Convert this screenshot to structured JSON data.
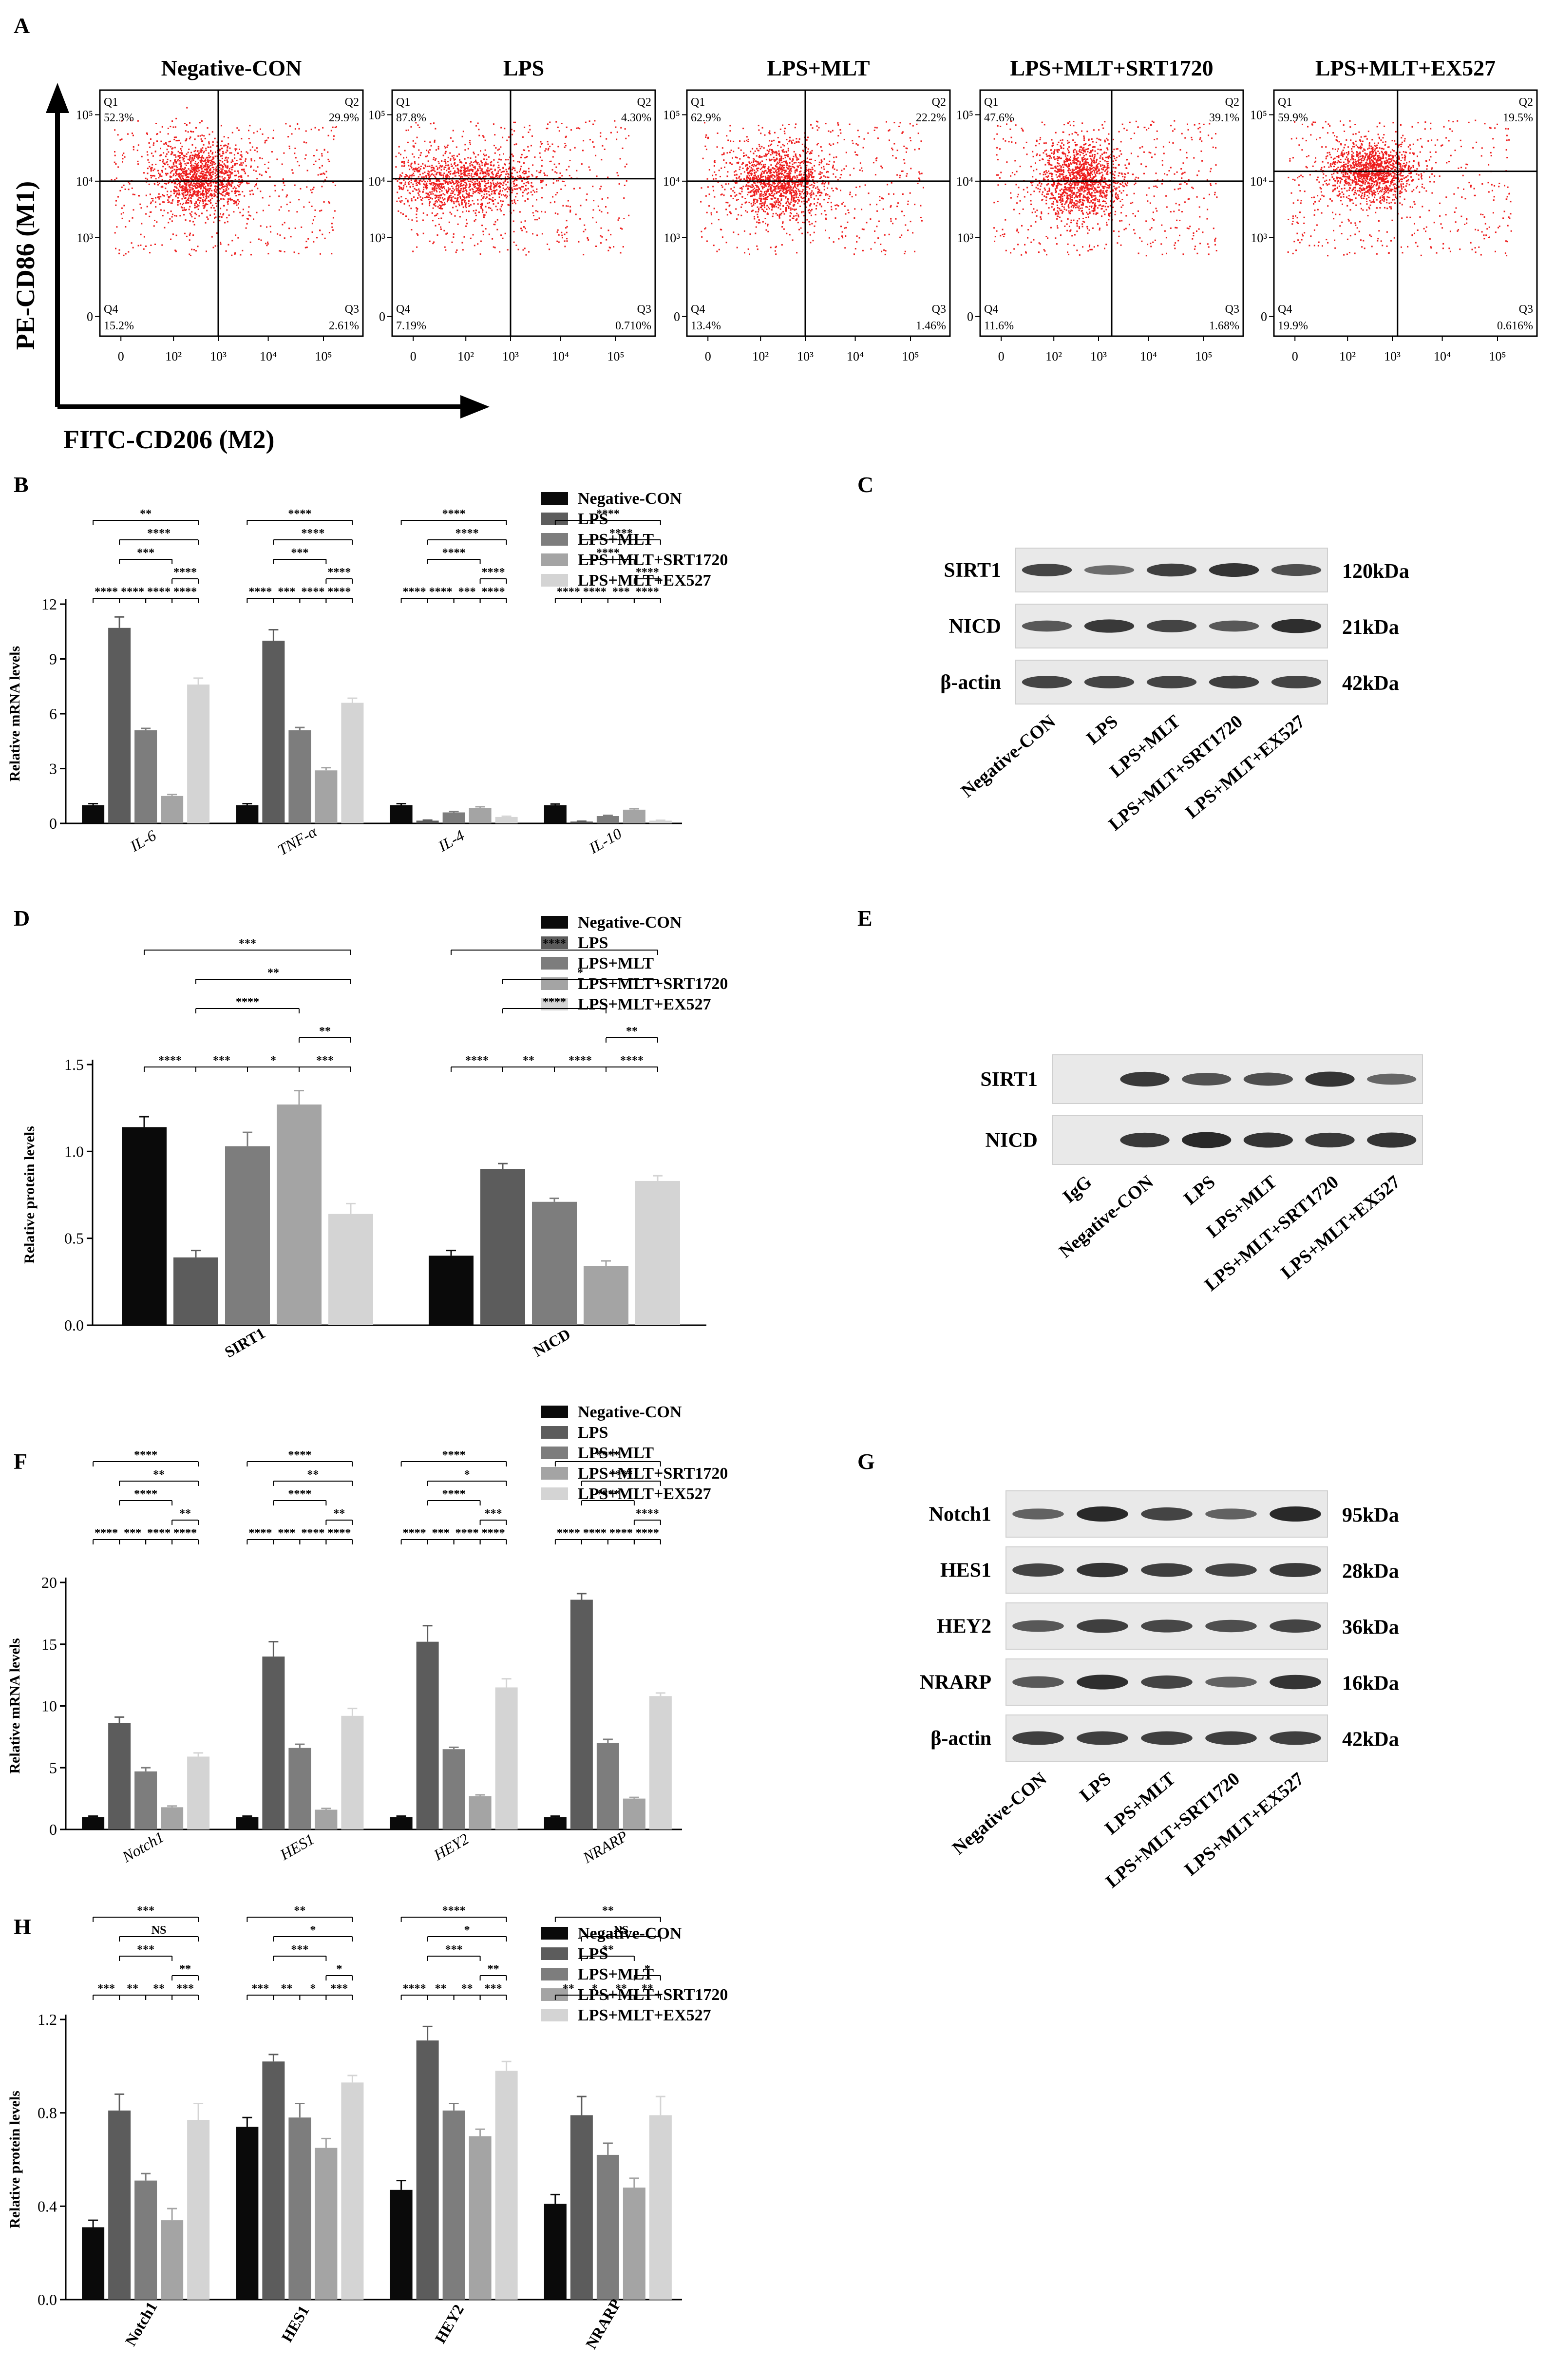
{
  "panel_labels": [
    "A",
    "B",
    "C",
    "D",
    "E",
    "F",
    "G",
    "H"
  ],
  "groups": [
    "Negative-CON",
    "LPS",
    "LPS+MLT",
    "LPS+MLT+SRT1720",
    "LPS+MLT+EX527"
  ],
  "group_colors": [
    "#0a0a0a",
    "#5c5c5c",
    "#7d7d7d",
    "#a4a4a4",
    "#d4d4d4"
  ],
  "flow": {
    "y_axis_label": "PE-CD86 (M1)",
    "x_axis_label": "FITC-CD206 (M2)",
    "x_ticks": [
      "0",
      "10²",
      "10³",
      "10⁴",
      "10⁵"
    ],
    "y_ticks": [
      "10⁵",
      "10⁴",
      "10³",
      "0"
    ],
    "plots": [
      {
        "title": "Negative-CON",
        "q1": "52.3%",
        "q2": "29.9%",
        "q3": "2.61%",
        "q4": "15.2%"
      },
      {
        "title": "LPS",
        "q1": "87.8%",
        "q2": "4.30%",
        "q3": "0.710%",
        "q4": "7.19%"
      },
      {
        "title": "LPS+MLT",
        "q1": "62.9%",
        "q2": "22.2%",
        "q3": "1.46%",
        "q4": "13.4%"
      },
      {
        "title": "LPS+MLT+SRT1720",
        "q1": "47.6%",
        "q2": "39.1%",
        "q3": "1.68%",
        "q4": "11.6%"
      },
      {
        "title": "LPS+MLT+EX527",
        "q1": "59.9%",
        "q2": "19.5%",
        "q3": "0.616%",
        "q4": "19.9%"
      }
    ]
  },
  "blots": {
    "C": {
      "rows": [
        {
          "name": "SIRT1",
          "kda": "120kDa"
        },
        {
          "name": "NICD",
          "kda": "21kDa"
        },
        {
          "name": "β-actin",
          "kda": "42kDa"
        }
      ],
      "lanes": [
        "Negative-CON",
        "LPS",
        "LPS+MLT",
        "LPS+MLT+SRT1720",
        "LPS+MLT+EX527"
      ]
    },
    "E": {
      "rows": [
        {
          "name": "SIRT1"
        },
        {
          "name": "NICD"
        }
      ],
      "lanes": [
        "IgG",
        "Negative-CON",
        "LPS",
        "LPS+MLT",
        "LPS+MLT+SRT1720",
        "LPS+MLT+EX527"
      ]
    },
    "G": {
      "rows": [
        {
          "name": "Notch1",
          "kda": "95kDa"
        },
        {
          "name": "HES1",
          "kda": "28kDa"
        },
        {
          "name": "HEY2",
          "kda": "36kDa"
        },
        {
          "name": "NRARP",
          "kda": "16kDa"
        },
        {
          "name": "β-actin",
          "kda": "42kDa"
        }
      ],
      "lanes": [
        "Negative-CON",
        "LPS",
        "LPS+MLT",
        "LPS+MLT+SRT1720",
        "LPS+MLT+EX527"
      ]
    }
  },
  "chart_data": [
    {
      "panel": "B",
      "type": "bar",
      "ylabel": "Relative mRNA levels",
      "italic_categories": true,
      "categories": [
        "IL-6",
        "TNF-α",
        "IL-4",
        "IL-10"
      ],
      "yticks": [
        "0",
        "3",
        "6",
        "9",
        "12"
      ],
      "ylim": [
        0,
        12
      ],
      "series": [
        {
          "name": "Negative-CON",
          "values": [
            1.0,
            1.0,
            1.0,
            1.0
          ],
          "errors": [
            0.08,
            0.08,
            0.08,
            0.06
          ]
        },
        {
          "name": "LPS",
          "values": [
            10.7,
            10.0,
            0.15,
            0.1
          ],
          "errors": [
            0.6,
            0.6,
            0.03,
            0.02
          ]
        },
        {
          "name": "LPS+MLT",
          "values": [
            5.1,
            5.1,
            0.6,
            0.4
          ],
          "errors": [
            0.1,
            0.15,
            0.05,
            0.04
          ]
        },
        {
          "name": "LPS+MLT+SRT1720",
          "values": [
            1.5,
            2.9,
            0.85,
            0.75
          ],
          "errors": [
            0.08,
            0.15,
            0.06,
            0.05
          ]
        },
        {
          "name": "LPS+MLT+EX527",
          "values": [
            7.6,
            6.6,
            0.35,
            0.15
          ],
          "errors": [
            0.35,
            0.25,
            0.04,
            0.02
          ]
        }
      ],
      "adjacent_sig": [
        [
          "****",
          "****",
          "****",
          "****"
        ],
        [
          "****",
          "***",
          "****",
          "****"
        ],
        [
          "****",
          "****",
          "***",
          "****"
        ],
        [
          "****",
          "****",
          "***",
          "****"
        ]
      ],
      "bracket_sig": [
        [
          "**",
          "****",
          "***",
          "****"
        ],
        [
          "****",
          "****",
          "***",
          "****"
        ],
        [
          "****",
          "****",
          "****",
          "****"
        ],
        [
          "****",
          "****",
          "****",
          "****"
        ]
      ]
    },
    {
      "panel": "D",
      "type": "bar",
      "ylabel": "Relative protein levels",
      "italic_categories": false,
      "categories": [
        "SIRT1",
        "NICD"
      ],
      "yticks": [
        "0.0",
        "0.5",
        "1.0",
        "1.5"
      ],
      "ylim": [
        0,
        1.5
      ],
      "series": [
        {
          "name": "Negative-CON",
          "values": [
            1.14,
            0.4
          ],
          "errors": [
            0.06,
            0.03
          ]
        },
        {
          "name": "LPS",
          "values": [
            0.39,
            0.9
          ],
          "errors": [
            0.04,
            0.03
          ]
        },
        {
          "name": "LPS+MLT",
          "values": [
            1.03,
            0.71
          ],
          "errors": [
            0.08,
            0.02
          ]
        },
        {
          "name": "LPS+MLT+SRT1720",
          "values": [
            1.27,
            0.34
          ],
          "errors": [
            0.08,
            0.03
          ]
        },
        {
          "name": "LPS+MLT+EX527",
          "values": [
            0.64,
            0.83
          ],
          "errors": [
            0.06,
            0.03
          ]
        }
      ],
      "adjacent_sig": [
        [
          "****",
          "***",
          "*",
          "***"
        ],
        [
          "****",
          "**",
          "****",
          "****"
        ]
      ],
      "bracket_sig": [
        [
          "***",
          "**",
          "****",
          "**"
        ],
        [
          "****",
          "*",
          "****",
          "**"
        ]
      ]
    },
    {
      "panel": "F",
      "type": "bar",
      "ylabel": "Relative mRNA levels",
      "italic_categories": true,
      "categories": [
        "Notch1",
        "HES1",
        "HEY2",
        "NRARP"
      ],
      "yticks": [
        "0",
        "5",
        "10",
        "15",
        "20"
      ],
      "ylim": [
        0,
        20
      ],
      "series": [
        {
          "name": "Negative-CON",
          "values": [
            1.0,
            1.0,
            1.0,
            1.0
          ],
          "errors": [
            0.08,
            0.08,
            0.08,
            0.08
          ]
        },
        {
          "name": "LPS",
          "values": [
            8.6,
            14.0,
            15.2,
            18.6
          ],
          "errors": [
            0.5,
            1.2,
            1.3,
            0.5
          ]
        },
        {
          "name": "LPS+MLT",
          "values": [
            4.7,
            6.6,
            6.5,
            7.0
          ],
          "errors": [
            0.3,
            0.3,
            0.15,
            0.3
          ]
        },
        {
          "name": "LPS+MLT+SRT1720",
          "values": [
            1.8,
            1.6,
            2.7,
            2.5
          ],
          "errors": [
            0.1,
            0.1,
            0.1,
            0.1
          ]
        },
        {
          "name": "LPS+MLT+EX527",
          "values": [
            5.9,
            9.2,
            11.5,
            10.8
          ],
          "errors": [
            0.3,
            0.6,
            0.7,
            0.25
          ]
        }
      ],
      "adjacent_sig": [
        [
          "****",
          "***",
          "****",
          "****"
        ],
        [
          "****",
          "***",
          "****",
          "****"
        ],
        [
          "****",
          "***",
          "****",
          "****"
        ],
        [
          "****",
          "****",
          "****",
          "****"
        ]
      ],
      "bracket_sig": [
        [
          "****",
          "**",
          "****",
          "**"
        ],
        [
          "****",
          "**",
          "****",
          "**"
        ],
        [
          "****",
          "*",
          "****",
          "***"
        ],
        [
          "****",
          "****",
          "****",
          "****"
        ]
      ]
    },
    {
      "panel": "H",
      "type": "bar",
      "ylabel": "Relative protein levels",
      "italic_categories": false,
      "categories": [
        "Notch1",
        "HES1",
        "HEY2",
        "NRARP"
      ],
      "yticks": [
        "0.0",
        "0.4",
        "0.8",
        "1.2"
      ],
      "ylim": [
        0,
        1.2
      ],
      "series": [
        {
          "name": "Negative-CON",
          "values": [
            0.31,
            0.74,
            0.47,
            0.41
          ],
          "errors": [
            0.03,
            0.04,
            0.04,
            0.04
          ]
        },
        {
          "name": "LPS",
          "values": [
            0.81,
            1.02,
            1.11,
            0.79
          ],
          "errors": [
            0.07,
            0.03,
            0.06,
            0.08
          ]
        },
        {
          "name": "LPS+MLT",
          "values": [
            0.51,
            0.78,
            0.81,
            0.62
          ],
          "errors": [
            0.03,
            0.06,
            0.03,
            0.05
          ]
        },
        {
          "name": "LPS+MLT+SRT1720",
          "values": [
            0.34,
            0.65,
            0.7,
            0.48
          ],
          "errors": [
            0.05,
            0.04,
            0.03,
            0.04
          ]
        },
        {
          "name": "LPS+MLT+EX527",
          "values": [
            0.77,
            0.93,
            0.98,
            0.79
          ],
          "errors": [
            0.07,
            0.03,
            0.04,
            0.08
          ]
        }
      ],
      "adjacent_sig": [
        [
          "***",
          "**",
          "**",
          "***"
        ],
        [
          "***",
          "**",
          "*",
          "***"
        ],
        [
          "****",
          "**",
          "**",
          "***"
        ],
        [
          "**",
          "*",
          "**",
          "**"
        ]
      ],
      "bracket_sig": [
        [
          "***",
          "NS",
          "***",
          "**"
        ],
        [
          "**",
          "*",
          "***",
          "*"
        ],
        [
          "****",
          "*",
          "***",
          "**"
        ],
        [
          "**",
          "NS",
          "**",
          "*"
        ]
      ]
    }
  ]
}
